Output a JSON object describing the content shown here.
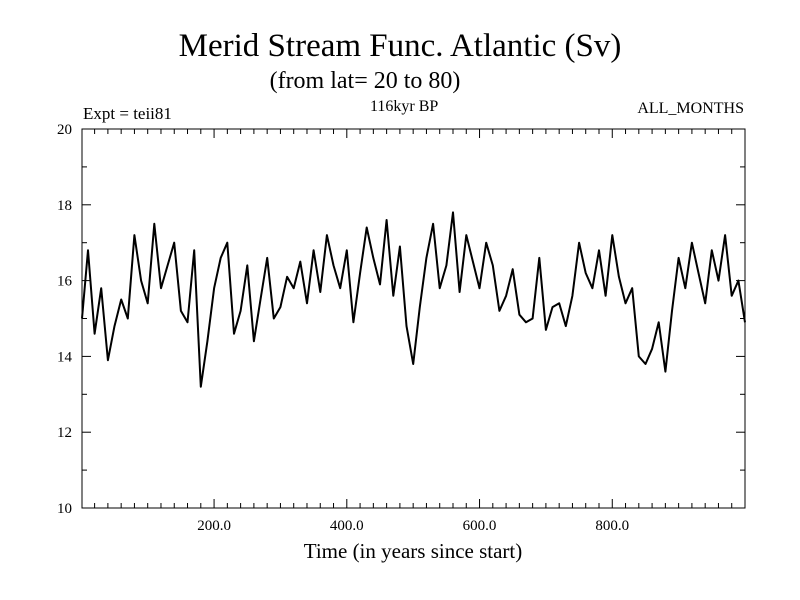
{
  "chart_data": {
    "type": "line",
    "title": "Merid Stream Func. Atlantic (Sv)",
    "subtitle": "(from lat= 20 to 80)",
    "annotations": {
      "left": "Expt = teii81",
      "center": "116kyr BP",
      "right": "ALL_MONTHS"
    },
    "xlabel": "Time (in years since start)",
    "ylabel": "",
    "xlim": [
      1,
      1000
    ],
    "ylim": [
      10,
      20
    ],
    "xticks": [
      200,
      400,
      600,
      800
    ],
    "xtick_labels": [
      "200.0",
      "400.0",
      "600.0",
      "800.0"
    ],
    "yticks": [
      10,
      12,
      14,
      16,
      18,
      20
    ],
    "ytick_labels": [
      "10",
      "12",
      "14",
      "16",
      "18",
      "20"
    ],
    "grid": false,
    "line_color": "#000000",
    "series": [
      {
        "x": [
          1,
          10,
          20,
          30,
          40,
          50,
          60,
          70,
          80,
          90,
          100,
          110,
          120,
          130,
          140,
          150,
          160,
          170,
          180,
          190,
          200,
          210,
          220,
          230,
          240,
          250,
          260,
          270,
          280,
          290,
          300,
          310,
          320,
          330,
          340,
          350,
          360,
          370,
          380,
          390,
          400,
          410,
          420,
          430,
          440,
          450,
          460,
          470,
          480,
          490,
          500,
          510,
          520,
          530,
          540,
          550,
          560,
          570,
          580,
          590,
          600,
          610,
          620,
          630,
          640,
          650,
          660,
          670,
          680,
          690,
          700,
          710,
          720,
          730,
          740,
          750,
          760,
          770,
          780,
          790,
          800,
          810,
          820,
          830,
          840,
          850,
          860,
          870,
          880,
          890,
          900,
          910,
          920,
          930,
          940,
          950,
          960,
          970,
          980,
          990,
          1000
        ],
        "values": [
          15.0,
          16.8,
          14.6,
          15.8,
          13.9,
          14.8,
          15.5,
          15.0,
          17.2,
          16.0,
          15.4,
          17.5,
          15.8,
          16.4,
          17.0,
          15.2,
          14.9,
          16.8,
          13.2,
          14.4,
          15.8,
          16.6,
          17.0,
          14.6,
          15.2,
          16.4,
          14.4,
          15.5,
          16.6,
          15.0,
          15.3,
          16.1,
          15.8,
          16.5,
          15.4,
          16.8,
          15.7,
          17.2,
          16.4,
          15.8,
          16.8,
          14.9,
          16.2,
          17.4,
          16.6,
          15.9,
          17.6,
          15.6,
          16.9,
          14.8,
          13.8,
          15.3,
          16.6,
          17.5,
          15.8,
          16.4,
          17.8,
          15.7,
          17.2,
          16.5,
          15.8,
          17.0,
          16.4,
          15.2,
          15.6,
          16.3,
          15.1,
          14.9,
          15.0,
          16.6,
          14.7,
          15.3,
          15.4,
          14.8,
          15.6,
          17.0,
          16.2,
          15.8,
          16.8,
          15.6,
          17.2,
          16.1,
          15.4,
          15.8,
          14.0,
          13.8,
          14.2,
          14.9,
          13.6,
          15.2,
          16.6,
          15.8,
          17.0,
          16.2,
          15.4,
          16.8,
          16.0,
          17.2,
          15.6,
          16.0,
          14.9
        ]
      }
    ]
  }
}
